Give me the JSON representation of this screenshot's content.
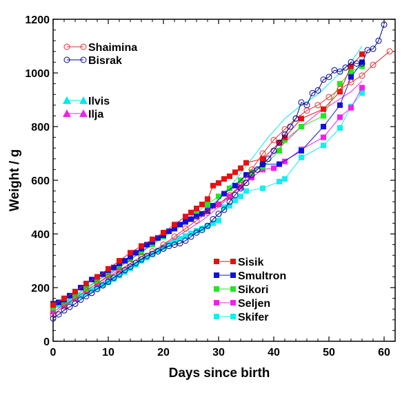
{
  "chart_data": {
    "type": "scatter",
    "title": "",
    "xlabel": "Days since birth",
    "ylabel": "Weight / g",
    "xlim": [
      0,
      62
    ],
    "ylim": [
      0,
      1200
    ],
    "xticks": [
      0,
      10,
      20,
      30,
      40,
      50,
      60
    ],
    "yticks": [
      0,
      200,
      400,
      600,
      800,
      1000,
      1200
    ],
    "grid": false,
    "legend_placement": "left-top, left-middle, bottom-right",
    "series": [
      {
        "name": "Shaimina",
        "color": "#e03030",
        "marker": "circle-open",
        "line": true,
        "x": [
          0,
          2,
          4,
          6,
          8,
          10,
          12,
          14,
          16,
          18,
          20,
          22,
          24,
          26,
          28,
          30,
          32,
          34,
          36,
          38,
          40,
          42,
          44,
          46,
          48,
          50,
          52,
          54,
          56,
          58,
          61
        ],
        "y": [
          100,
          130,
          160,
          190,
          215,
          240,
          265,
          290,
          315,
          335,
          360,
          390,
          420,
          450,
          480,
          510,
          545,
          580,
          640,
          700,
          750,
          790,
          830,
          860,
          880,
          910,
          940,
          965,
          990,
          1030,
          1080
        ]
      },
      {
        "name": "Bisrak",
        "color": "#000090",
        "marker": "circle-open",
        "line": true,
        "x": [
          0,
          1,
          2,
          3,
          4,
          5,
          6,
          7,
          8,
          9,
          10,
          11,
          12,
          13,
          14,
          15,
          16,
          17,
          18,
          19,
          20,
          21,
          22,
          23,
          24,
          25,
          26,
          27,
          28,
          29,
          30,
          31,
          32,
          33,
          34,
          35,
          36,
          37,
          38,
          39,
          40,
          41,
          42,
          43,
          44,
          45,
          46,
          47,
          48,
          49,
          50,
          51,
          52,
          53,
          54,
          55,
          56,
          57,
          58,
          59,
          60
        ],
        "y": [
          85,
          100,
          115,
          128,
          140,
          155,
          168,
          180,
          195,
          208,
          222,
          237,
          250,
          265,
          278,
          292,
          305,
          318,
          325,
          335,
          345,
          355,
          360,
          365,
          375,
          390,
          405,
          415,
          430,
          455,
          475,
          490,
          520,
          545,
          570,
          590,
          620,
          640,
          660,
          680,
          710,
          740,
          770,
          800,
          830,
          890,
          880,
          925,
          935,
          975,
          985,
          1010,
          1005,
          1020,
          1040,
          1035,
          1035,
          1085,
          1090,
          1120,
          1180
        ]
      },
      {
        "name": "Ilvis",
        "color": "#00e8f0",
        "marker": "triangle-filled",
        "line": true,
        "x": [
          0,
          3,
          6,
          9,
          12,
          15,
          18,
          21,
          24,
          27,
          30,
          33,
          36,
          39,
          42,
          45,
          48,
          51,
          54,
          56
        ],
        "y": [
          120,
          160,
          200,
          240,
          280,
          320,
          360,
          400,
          440,
          480,
          530,
          600,
          680,
          760,
          830,
          880,
          920,
          980,
          1040,
          1100
        ]
      },
      {
        "name": "Ilja",
        "color": "#f020f0",
        "marker": "triangle-filled",
        "line": true,
        "x": [
          0,
          3,
          6,
          9,
          12,
          15,
          18,
          21,
          24,
          27,
          30,
          33,
          36,
          39,
          42,
          45,
          48,
          51,
          54,
          56
        ],
        "y": [
          120,
          150,
          185,
          220,
          260,
          295,
          330,
          370,
          410,
          450,
          500,
          560,
          620,
          680,
          740,
          800,
          850,
          890,
          930,
          970
        ]
      },
      {
        "name": "Sisik",
        "color": "#e81010",
        "marker": "square-filled",
        "line": true,
        "x": [
          0,
          2,
          4,
          6,
          8,
          10,
          12,
          14,
          16,
          18,
          20,
          22,
          24,
          25,
          26,
          27,
          28,
          29,
          30,
          31,
          32,
          33,
          34,
          35,
          38,
          41,
          42,
          45,
          49,
          52,
          54,
          56
        ],
        "y": [
          135,
          160,
          185,
          215,
          240,
          270,
          300,
          330,
          355,
          380,
          405,
          435,
          465,
          480,
          495,
          510,
          530,
          580,
          590,
          605,
          615,
          630,
          645,
          665,
          680,
          740,
          760,
          830,
          865,
          930,
          1025,
          1070
        ]
      },
      {
        "name": "Smultron",
        "color": "#1010e0",
        "marker": "square-filled",
        "line": true,
        "x": [
          0,
          1,
          2,
          3,
          4,
          5,
          6,
          7,
          8,
          9,
          10,
          11,
          12,
          13,
          14,
          15,
          16,
          17,
          18,
          19,
          20,
          21,
          22,
          23,
          24,
          25,
          26,
          27,
          28,
          29,
          31,
          33,
          35,
          38,
          41,
          45,
          49,
          52,
          54,
          56
        ],
        "y": [
          140,
          145,
          155,
          170,
          185,
          200,
          215,
          230,
          240,
          250,
          265,
          275,
          290,
          300,
          315,
          330,
          345,
          360,
          370,
          385,
          395,
          410,
          420,
          435,
          445,
          455,
          465,
          475,
          485,
          505,
          550,
          580,
          620,
          660,
          660,
          710,
          800,
          880,
          985,
          1040
        ]
      },
      {
        "name": "Sikori",
        "color": "#20e820",
        "marker": "square-filled",
        "line": true,
        "x": [
          0,
          2,
          4,
          6,
          8,
          10,
          12,
          14,
          16,
          18,
          20,
          22,
          24,
          26,
          28,
          30,
          32,
          34,
          36,
          38,
          41,
          42,
          45,
          49,
          52,
          54,
          56
        ],
        "y": [
          125,
          145,
          170,
          195,
          225,
          250,
          280,
          305,
          330,
          360,
          390,
          420,
          450,
          480,
          510,
          540,
          570,
          600,
          630,
          650,
          710,
          750,
          800,
          840,
          960,
          1005,
          1025
        ]
      },
      {
        "name": "Seljen",
        "color": "#f020f0",
        "marker": "square-filled",
        "line": true,
        "x": [
          0,
          2,
          4,
          6,
          8,
          10,
          12,
          14,
          16,
          18,
          20,
          22,
          24,
          26,
          28,
          30,
          32,
          34,
          36,
          38,
          40,
          42,
          45,
          49,
          52,
          54,
          56
        ],
        "y": [
          110,
          135,
          160,
          190,
          215,
          245,
          275,
          305,
          335,
          365,
          395,
          420,
          445,
          470,
          490,
          510,
          540,
          575,
          610,
          640,
          645,
          670,
          715,
          760,
          835,
          870,
          945
        ]
      },
      {
        "name": "Skifer",
        "color": "#10f0f0",
        "marker": "square-filled",
        "line": true,
        "x": [
          0,
          1,
          2,
          3,
          4,
          5,
          6,
          7,
          8,
          9,
          10,
          11,
          12,
          13,
          14,
          15,
          16,
          17,
          18,
          19,
          20,
          21,
          22,
          23,
          24,
          25,
          26,
          27,
          28,
          29,
          30,
          31,
          32,
          33,
          34,
          35,
          38,
          41,
          42,
          45,
          49,
          52,
          54,
          56
        ],
        "y": [
          130,
          135,
          140,
          148,
          158,
          168,
          178,
          190,
          200,
          210,
          220,
          232,
          245,
          258,
          272,
          285,
          300,
          312,
          325,
          338,
          350,
          362,
          372,
          382,
          392,
          402,
          412,
          420,
          430,
          440,
          450,
          500,
          505,
          525,
          540,
          560,
          570,
          595,
          605,
          685,
          730,
          795,
          875,
          925
        ]
      }
    ]
  }
}
